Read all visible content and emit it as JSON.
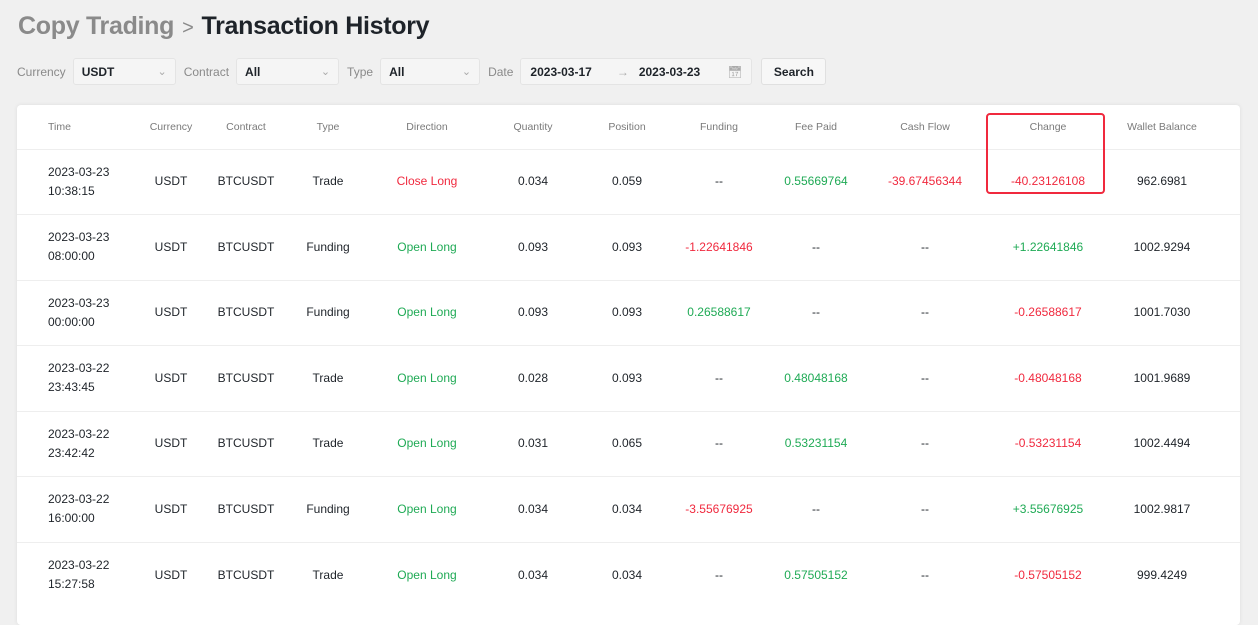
{
  "breadcrumb": {
    "parent": "Copy Trading",
    "separator": ">",
    "current": "Transaction History"
  },
  "filters": {
    "currency_label": "Currency",
    "currency_value": "USDT",
    "contract_label": "Contract",
    "contract_value": "All",
    "type_label": "Type",
    "type_value": "All",
    "date_label": "Date",
    "date_start": "2023-03-17",
    "date_end": "2023-03-23",
    "search_label": "Search"
  },
  "colors": {
    "positive": "#1faa55",
    "negative": "#f0293e",
    "highlight_box": "#f0293e"
  },
  "table": {
    "columns": [
      "Time",
      "Currency",
      "Contract",
      "Type",
      "Direction",
      "Quantity",
      "Position",
      "Funding",
      "Fee Paid",
      "Cash Flow",
      "Change",
      "Wallet Balance"
    ],
    "rows": [
      {
        "date": "2023-03-23",
        "time": "10:38:15",
        "currency": "USDT",
        "contract": "BTCUSDT",
        "type": "Trade",
        "direction": "Close Long",
        "quantity": "0.034",
        "position": "0.059",
        "funding": "--",
        "fee_paid": "0.55669764",
        "cash_flow": "-39.67456344",
        "change": "-40.23126108",
        "wallet_balance": "962.6981"
      },
      {
        "date": "2023-03-23",
        "time": "08:00:00",
        "currency": "USDT",
        "contract": "BTCUSDT",
        "type": "Funding",
        "direction": "Open Long",
        "quantity": "0.093",
        "position": "0.093",
        "funding": "-1.22641846",
        "fee_paid": "--",
        "cash_flow": "--",
        "change": "+1.22641846",
        "wallet_balance": "1002.9294"
      },
      {
        "date": "2023-03-23",
        "time": "00:00:00",
        "currency": "USDT",
        "contract": "BTCUSDT",
        "type": "Funding",
        "direction": "Open Long",
        "quantity": "0.093",
        "position": "0.093",
        "funding": "0.26588617",
        "fee_paid": "--",
        "cash_flow": "--",
        "change": "-0.26588617",
        "wallet_balance": "1001.7030"
      },
      {
        "date": "2023-03-22",
        "time": "23:43:45",
        "currency": "USDT",
        "contract": "BTCUSDT",
        "type": "Trade",
        "direction": "Open Long",
        "quantity": "0.028",
        "position": "0.093",
        "funding": "--",
        "fee_paid": "0.48048168",
        "cash_flow": "--",
        "change": "-0.48048168",
        "wallet_balance": "1001.9689"
      },
      {
        "date": "2023-03-22",
        "time": "23:42:42",
        "currency": "USDT",
        "contract": "BTCUSDT",
        "type": "Trade",
        "direction": "Open Long",
        "quantity": "0.031",
        "position": "0.065",
        "funding": "--",
        "fee_paid": "0.53231154",
        "cash_flow": "--",
        "change": "-0.53231154",
        "wallet_balance": "1002.4494"
      },
      {
        "date": "2023-03-22",
        "time": "16:00:00",
        "currency": "USDT",
        "contract": "BTCUSDT",
        "type": "Funding",
        "direction": "Open Long",
        "quantity": "0.034",
        "position": "0.034",
        "funding": "-3.55676925",
        "fee_paid": "--",
        "cash_flow": "--",
        "change": "+3.55676925",
        "wallet_balance": "1002.9817"
      },
      {
        "date": "2023-03-22",
        "time": "15:27:58",
        "currency": "USDT",
        "contract": "BTCUSDT",
        "type": "Trade",
        "direction": "Open Long",
        "quantity": "0.034",
        "position": "0.034",
        "funding": "--",
        "fee_paid": "0.57505152",
        "cash_flow": "--",
        "change": "-0.57505152",
        "wallet_balance": "999.4249"
      }
    ]
  }
}
